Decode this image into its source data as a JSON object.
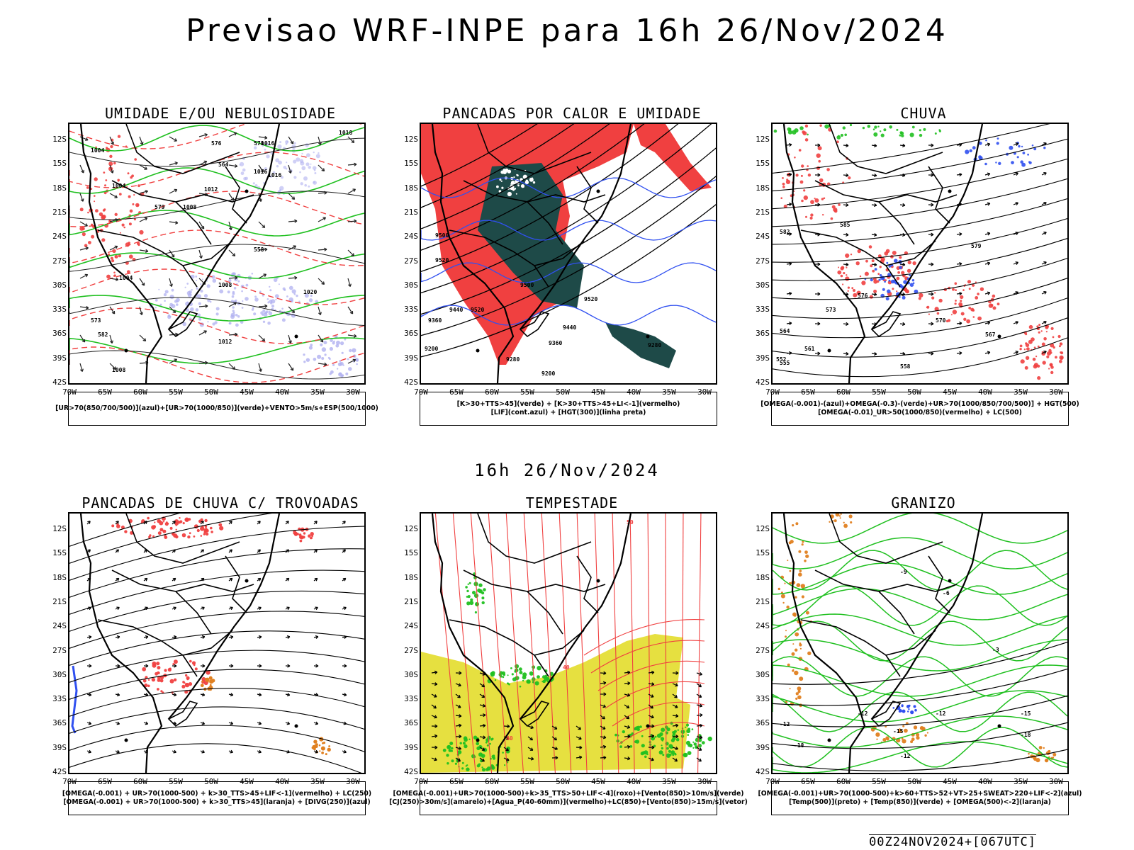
{
  "title": "Previsao WRF-INPE  para 16h 26/Nov/2024",
  "mid_title": "16h 26/Nov/2024",
  "footer": "00Z24NOV2024+[067UTC]",
  "lat_ticks": [
    "12S",
    "15S",
    "18S",
    "21S",
    "24S",
    "27S",
    "30S",
    "33S",
    "36S",
    "39S",
    "42S"
  ],
  "lon_ticks": [
    "70W",
    "65W",
    "60W",
    "55W",
    "50W",
    "45W",
    "40W",
    "35W",
    "30W"
  ],
  "colors": {
    "red": "#f04040",
    "green": "#20c020",
    "blue": "#3050f0",
    "lavender": "#b0b0f0",
    "darkteal": "#1e4a48",
    "yellow": "#e6e040",
    "orange": "#e08020",
    "black": "#000000"
  },
  "panels": [
    {
      "title": "UMIDADE E/OU NEBULOSIDADE",
      "legend": [
        "[UR>70(850/700/500)](azul)+[UR>70(1000/850)](verde)+VENTO>5m/s+ESP(500/1000)"
      ],
      "labels": [
        "1004",
        "1004",
        "1008",
        "1008",
        "1004",
        "1016",
        "1012",
        "1016",
        "1020",
        "1012",
        "1016",
        "1018",
        "1008",
        "576",
        "573",
        "570",
        "564",
        "558",
        "582",
        "579"
      ]
    },
    {
      "title": "PANCADAS POR CALOR E UMIDADE",
      "legend": [
        "[K>30+TTS>45](verde) + [K>30+TTS>45+LI<-1](vermelho)",
        "[LIF](cont.azul) + [HGT(300)](linha preta)"
      ],
      "labels": [
        "9520",
        "9500",
        "9520",
        "9440",
        "9360",
        "9200",
        "9500",
        "9440",
        "9360",
        "9280",
        "9200",
        "9520",
        "9280"
      ]
    },
    {
      "title": "CHUVA",
      "legend": [
        "[OMEGA(-0.001)-(azul)+OMEGA(-0.3)-(verde)+UR>70(1000/850/700/500)] + HGT(500)",
        "[OMEGA(-0.01)_UR>50(1000/850)(vermelho) + LC(500)"
      ],
      "labels": [
        "585",
        "582",
        "579",
        "576",
        "573",
        "570",
        "567",
        "564",
        "561",
        "558",
        "555",
        "552"
      ]
    },
    {
      "title": "PANCADAS DE CHUVA C/ TROVOADAS",
      "legend": [
        "[OMEGA(-0.001) + UR>70(1000-500) + k>30_TTS>45+LIF<-1](vermelho) + LC(250)",
        "[OMEGA(-0.001) + UR>70(1000-500) + k>30_TTS>45](laranja) + [DIVG(250)](azul)"
      ],
      "labels": []
    },
    {
      "title": "TEMPESTADE",
      "legend": [
        "[OMEGA(-0.001)+UR>70(1000-500)+k>35_TTS>50+LIF<-4](roxo)+[Vento(850)>10m/s](verde)",
        "[CJ(250)>30m/s](amarelo)+[Agua_P(40-60mm)](vermelho)+LC(850)+[Vento(850)>15m/s](vetor)"
      ],
      "labels": [
        "40",
        "40",
        "50"
      ]
    },
    {
      "title": "GRANIZO",
      "legend": [
        "[OMEGA(-0.001)+UR>70(1000-500)+k>60+TTS>52+VT>25+SWEAT>220+LIF<-2](azul)",
        "[Temp(500)](preto) + [Temp(850)](verde) + [OMEGA(500)<-2](laranja)"
      ],
      "labels": [
        "-3",
        "-6",
        "-9",
        "-12",
        "-12",
        "-15",
        "-15",
        "-18",
        "-12",
        "-18",
        "-12"
      ]
    }
  ]
}
